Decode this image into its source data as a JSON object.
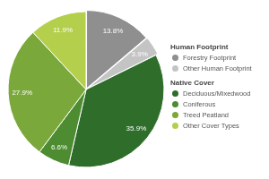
{
  "chart_data": {
    "type": "pie",
    "categories": [
      "Forestry Footprint",
      "Other Human Footprint",
      "Deciduous/Mixedwood",
      "Coniferous",
      "Treed Peatland",
      "Other Cover Types"
    ],
    "values": [
      13.8,
      3.9,
      35.9,
      6.6,
      27.9,
      11.9
    ],
    "value_labels": [
      "13.8%",
      "3.9%",
      "35.9%",
      "6.6%",
      "27.9%",
      "11.9%"
    ],
    "colors": [
      "#8f8f8f",
      "#c4c4c4",
      "#2f6d2b",
      "#4d8c30",
      "#7ba83b",
      "#b4cf4c"
    ],
    "groups": [
      {
        "name": "Human Footprint",
        "categories": [
          "Forestry Footprint",
          "Other Human Footprint"
        ]
      },
      {
        "name": "Native Cover",
        "categories": [
          "Deciduous/Mixedwood",
          "Coniferous",
          "Treed Peatland",
          "Other Cover Types"
        ]
      }
    ],
    "data_labels": true,
    "legend": "right"
  }
}
